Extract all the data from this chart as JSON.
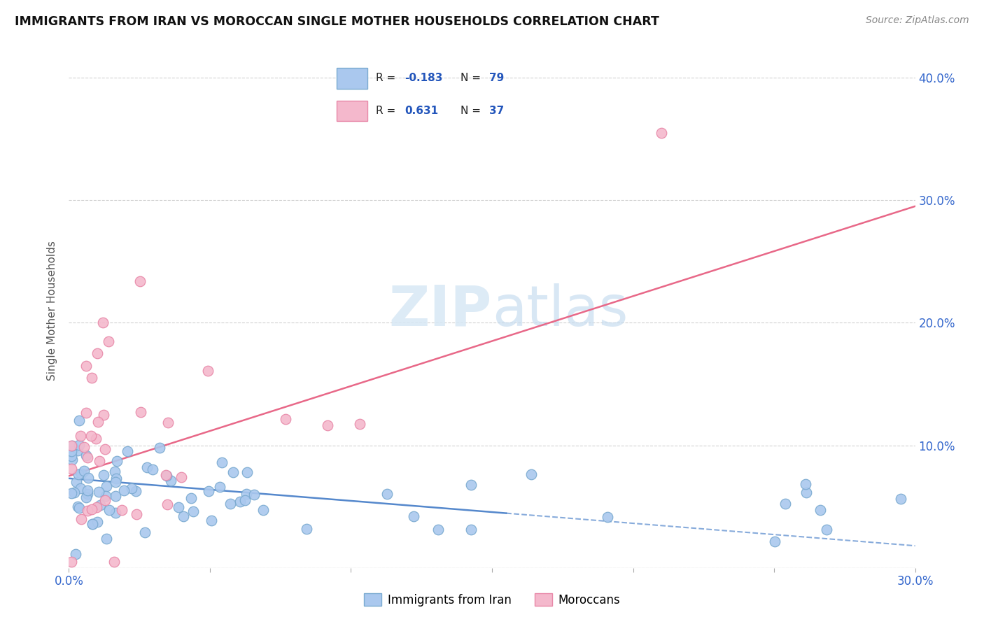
{
  "title": "IMMIGRANTS FROM IRAN VS MOROCCAN SINGLE MOTHER HOUSEHOLDS CORRELATION CHART",
  "source": "Source: ZipAtlas.com",
  "xlabel_blue": "Immigrants from Iran",
  "xlabel_pink": "Moroccans",
  "ylabel": "Single Mother Households",
  "xlim": [
    0.0,
    0.3
  ],
  "ylim": [
    0.0,
    0.42
  ],
  "y_ticks": [
    0.0,
    0.1,
    0.2,
    0.3,
    0.4
  ],
  "y_tick_labels": [
    "",
    "10.0%",
    "20.0%",
    "30.0%",
    "40.0%"
  ],
  "blue_R": -0.183,
  "blue_N": 79,
  "pink_R": 0.631,
  "pink_N": 37,
  "blue_color": "#aac8ee",
  "blue_edge": "#7aaad0",
  "blue_line_color": "#5588cc",
  "pink_color": "#f4b8cc",
  "pink_edge": "#e888a8",
  "pink_line_color": "#e86888",
  "watermark_color": "#d8e8f5",
  "blue_line_solid_end": 0.155,
  "blue_line_start_y": 0.073,
  "blue_line_end_y": 0.018,
  "pink_line_start_y": 0.075,
  "pink_line_end_y": 0.295
}
